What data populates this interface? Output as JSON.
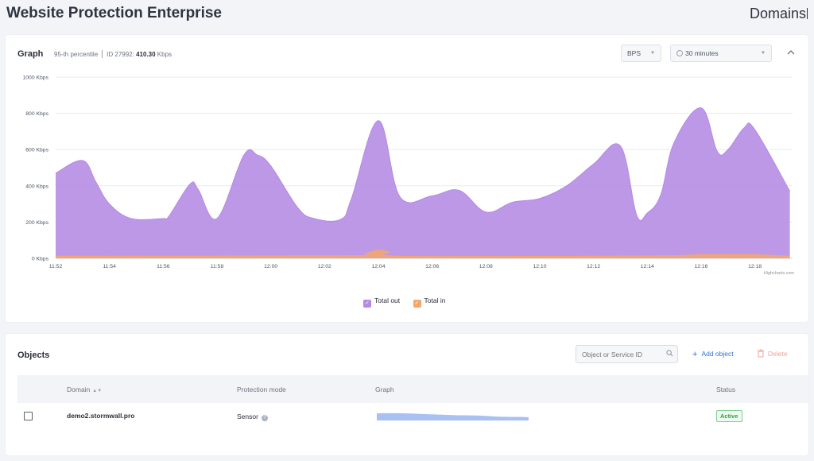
{
  "header": {
    "title": "Website Protection Enterprise",
    "domains_link": "Domains"
  },
  "graph_panel": {
    "title": "Graph",
    "percentile_label": "95-th percentile",
    "id_label": "ID 27992:",
    "value": "410.30",
    "unit": "Kbps",
    "metric_select": "BPS",
    "period_select": "30 minutes",
    "collapse_icon": "chevron-up-icon"
  },
  "chart_data": {
    "type": "area",
    "credit": "Highcharts.com",
    "y_axis": {
      "ticks": [
        "0 Kbps",
        "200 Kbps",
        "400 Kbps",
        "600 Kbps",
        "800 Kbps",
        "1000 Kbps"
      ],
      "ylim": [
        0,
        1000
      ],
      "unit": "Kbps"
    },
    "x_axis": {
      "ticks": [
        "11:52",
        "11:54",
        "11:56",
        "11:58",
        "12:00",
        "12:02",
        "12:04",
        "12:06",
        "12:08",
        "12:10",
        "12:12",
        "12:14",
        "12:16",
        "12:18"
      ],
      "xlim_minutes": [
        0,
        27.4
      ]
    },
    "grid": true,
    "legend_position": "bottom-center",
    "series": [
      {
        "name": "Total out",
        "color": "#b38ae4",
        "points": [
          [
            0,
            470
          ],
          [
            1,
            540
          ],
          [
            1.5,
            420
          ],
          [
            2,
            300
          ],
          [
            2.8,
            220
          ],
          [
            4,
            220
          ],
          [
            4.2,
            230
          ],
          [
            5,
            410
          ],
          [
            5.3,
            380
          ],
          [
            6,
            220
          ],
          [
            7,
            570
          ],
          [
            7.5,
            570
          ],
          [
            8,
            510
          ],
          [
            9,
            280
          ],
          [
            9.6,
            220
          ],
          [
            10.6,
            215
          ],
          [
            11,
            330
          ],
          [
            12,
            760
          ],
          [
            12.8,
            340
          ],
          [
            14,
            345
          ],
          [
            15,
            375
          ],
          [
            16,
            255
          ],
          [
            17,
            310
          ],
          [
            18,
            330
          ],
          [
            19,
            400
          ],
          [
            20,
            520
          ],
          [
            21,
            620
          ],
          [
            21.6,
            240
          ],
          [
            22,
            250
          ],
          [
            22.5,
            350
          ],
          [
            23,
            640
          ],
          [
            24,
            830
          ],
          [
            24.6,
            590
          ],
          [
            25,
            600
          ],
          [
            25.6,
            720
          ],
          [
            26,
            710
          ],
          [
            27.3,
            370
          ]
        ]
      },
      {
        "name": "Total in",
        "color": "#f4a76c",
        "points": [
          [
            0,
            12
          ],
          [
            11,
            15
          ],
          [
            11.5,
            25
          ],
          [
            12,
            45
          ],
          [
            12.4,
            35
          ],
          [
            12.8,
            12
          ],
          [
            20,
            12
          ],
          [
            23,
            15
          ],
          [
            24,
            20
          ],
          [
            26,
            20
          ],
          [
            27.3,
            12
          ]
        ]
      }
    ]
  },
  "legend": {
    "items": [
      {
        "label": "Total out",
        "color": "#b38ae4"
      },
      {
        "label": "Total in",
        "color": "#f4a76c"
      }
    ]
  },
  "objects_panel": {
    "title": "Objects",
    "search_placeholder": "Object or Service ID",
    "add_label": "Add object",
    "delete_label": "Delete",
    "columns": [
      "Domain",
      "Protection mode",
      "Graph",
      "Status"
    ],
    "rows": [
      {
        "domain": "demo2.stormwall.pro",
        "mode": "Sensor",
        "status": "Active",
        "spark_color": "#a9c1f2"
      }
    ]
  }
}
